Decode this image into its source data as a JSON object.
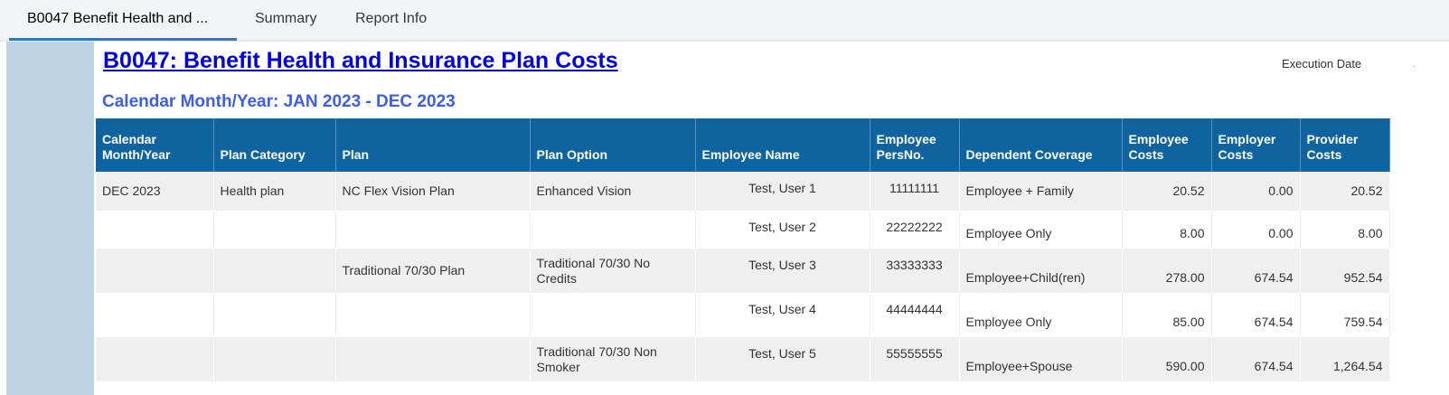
{
  "tabs": [
    {
      "label": "B0047 Benefit Health and ..."
    },
    {
      "label": "Summary"
    },
    {
      "label": "Report Info"
    }
  ],
  "report": {
    "title": "B0047: Benefit Health and Insurance Plan Costs",
    "execution_date_label": "Execution Date",
    "subtitle": "Calendar Month/Year:  JAN 2023 - DEC 2023"
  },
  "colors": {
    "header_bg": "#0f64a0",
    "title": "#0000e6",
    "subtitle": "#3c5ee8",
    "sidebar": "#bcd3e3"
  },
  "table": {
    "columns": [
      "Calendar Month/Year",
      "Plan Category",
      "Plan",
      "Plan Option",
      "Employee Name",
      "Employee PersNo.",
      "Dependent Coverage",
      "Employee Costs",
      "Employer Costs",
      "Provider Costs"
    ],
    "rows": [
      [
        "DEC 2023",
        "Health plan",
        "NC Flex Vision Plan",
        "Enhanced Vision",
        "Test, User 1",
        "11111111",
        "Employee + Family",
        "20.52",
        "0.00",
        "20.52"
      ],
      [
        "",
        "",
        "",
        "",
        "Test, User 2",
        "22222222",
        "Employee Only",
        "8.00",
        "0.00",
        "8.00"
      ],
      [
        "",
        "",
        "Traditional 70/30 Plan",
        "Traditional 70/30 No Credits",
        "Test, User 3",
        "33333333",
        "Employee+Child(ren)",
        "278.00",
        "674.54",
        "952.54"
      ],
      [
        "",
        "",
        "",
        "",
        "Test, User 4",
        "44444444",
        "Employee Only",
        "85.00",
        "674.54",
        "759.54"
      ],
      [
        "",
        "",
        "",
        "Traditional 70/30 Non Smoker",
        "Test, User 5",
        "55555555",
        "Employee+Spouse",
        "590.00",
        "674.54",
        "1,264.54"
      ]
    ]
  }
}
